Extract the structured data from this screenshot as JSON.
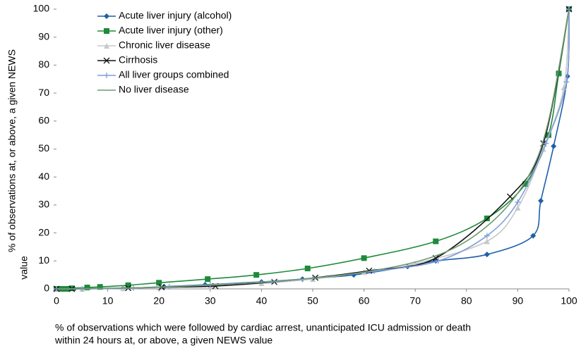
{
  "chart_data": {
    "type": "line",
    "x_label": [
      "% of observations which were followed by cardiac arrest, unanticipated ICU admission or death",
      "within 24 hours at, or above, a given NEWS value"
    ],
    "y_label": [
      "% of observations at, or above, a given NEWS",
      "value"
    ],
    "xlim": [
      0,
      100
    ],
    "ylim": [
      0,
      100
    ],
    "xticks": [
      0,
      10,
      20,
      30,
      40,
      50,
      60,
      70,
      80,
      90,
      100
    ],
    "yticks": [
      0,
      10,
      20,
      30,
      40,
      50,
      60,
      70,
      80,
      90,
      100
    ],
    "grid": false,
    "legend": "upper left",
    "series": [
      {
        "name": "Acute liver injury (alcohol)",
        "color": "#1f5fa8",
        "marker": "diamond",
        "x": [
          0,
          1,
          2,
          3.5,
          13,
          21,
          29,
          40,
          48,
          58,
          68.5,
          74,
          84,
          93,
          94.5,
          97,
          99.7,
          100
        ],
        "values": [
          0,
          0,
          0,
          0,
          0.2,
          0.8,
          1.5,
          2.5,
          3.5,
          5,
          8,
          10,
          12.3,
          19,
          31.5,
          51,
          76,
          100
        ]
      },
      {
        "name": "Acute liver injury (other)",
        "color": "#1e8a3a",
        "marker": "square",
        "x": [
          0,
          1,
          2,
          3,
          6,
          8.5,
          14,
          20,
          29.5,
          39,
          49,
          60,
          74,
          84,
          91.5,
          96,
          98,
          100
        ],
        "values": [
          0,
          0,
          0,
          0.2,
          0.5,
          0.7,
          1.3,
          2.2,
          3.5,
          5,
          7.3,
          11,
          17,
          25.2,
          37.5,
          55,
          77,
          100
        ]
      },
      {
        "name": "Chronic liver disease",
        "color": "#c8c8c8",
        "marker": "triangle",
        "x": [
          0,
          5,
          13,
          20,
          30,
          40,
          50,
          60,
          70,
          84,
          90,
          95,
          99,
          100
        ],
        "values": [
          0,
          0,
          0.2,
          0.5,
          1,
          2,
          3.5,
          6,
          9,
          17,
          29,
          50,
          72,
          100
        ]
      },
      {
        "name": "Cirrhosis",
        "color": "#111111",
        "marker": "x",
        "x": [
          0,
          3,
          14,
          20.5,
          31,
          42.5,
          50.5,
          61,
          74,
          88.5,
          95,
          100
        ],
        "values": [
          0,
          0,
          0.3,
          0.6,
          1,
          2.5,
          4,
          6.5,
          11,
          33,
          52,
          100
        ]
      },
      {
        "name": "All liver groups combined",
        "color": "#7f9fd8",
        "marker": "plus",
        "x": [
          0,
          5,
          15,
          22,
          30,
          42,
          50,
          62,
          74.5,
          84,
          90,
          95.5,
          99.5,
          100
        ],
        "values": [
          0,
          0,
          0.3,
          0.8,
          1.5,
          2.5,
          3.8,
          6.3,
          10,
          19,
          31,
          52,
          74,
          100
        ]
      },
      {
        "name": "No liver disease",
        "color": "#6f9a72",
        "marker": "none",
        "x": [
          0,
          20,
          40,
          60,
          75,
          85,
          92,
          96,
          100
        ],
        "values": [
          0,
          0.6,
          2.4,
          6,
          12.5,
          24,
          40,
          60,
          100
        ]
      }
    ]
  }
}
